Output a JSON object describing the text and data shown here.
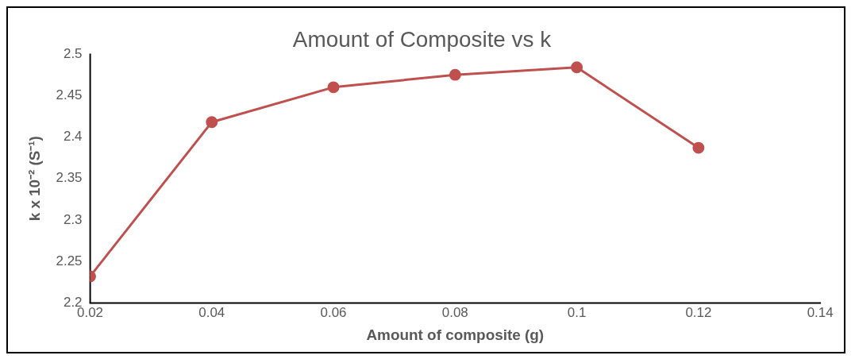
{
  "chart_data": {
    "type": "line",
    "title": "Amount of Composite vs k",
    "xlabel": "Amount of composite (g)",
    "ylabel": "k x 10⁻² (S⁻¹)",
    "x": [
      0.02,
      0.04,
      0.06,
      0.08,
      0.1,
      0.12
    ],
    "series": [
      {
        "color": "#c0504d",
        "values": [
          2.232,
          2.418,
          2.46,
          2.475,
          2.484,
          2.387
        ]
      }
    ],
    "xlim": [
      0.02,
      0.14
    ],
    "xticks": [
      0.02,
      0.04,
      0.06,
      0.08,
      0.1,
      0.12,
      0.14
    ],
    "ylim": [
      2.2,
      2.5
    ],
    "yticks": [
      2.2,
      2.25,
      2.3,
      2.35,
      2.4,
      2.45,
      2.5
    ],
    "grid": false,
    "legend": false,
    "marker": "circle",
    "line_style": "solid"
  }
}
